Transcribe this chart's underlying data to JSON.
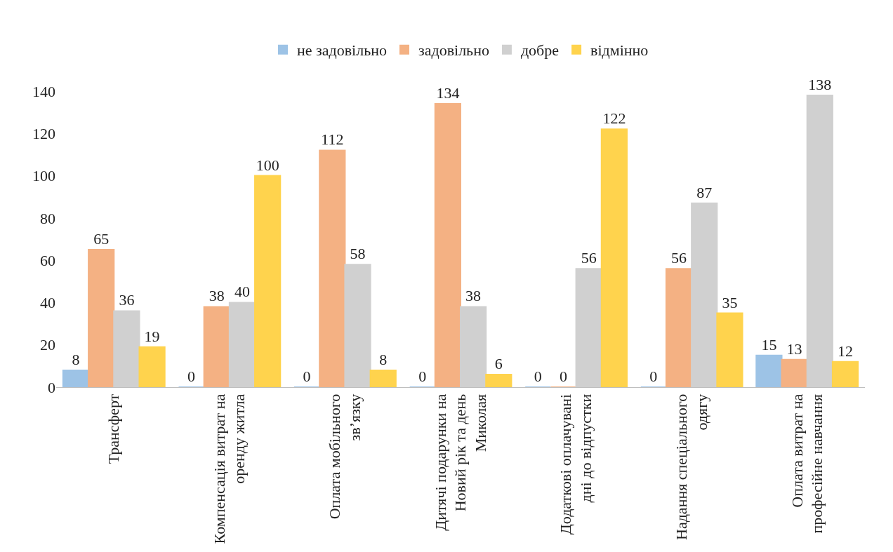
{
  "chart_data": {
    "type": "bar",
    "categories": [
      "Трансферт",
      "Компенсація витрат на оренду житла",
      "Оплата мобільного зв’язку",
      "Дитячі подарунки на Новий рік та день Миколая",
      "Додаткові оплачувані дні до відпустки",
      "Надання спеціального одягу",
      "Оплата витрат на професійне навчання"
    ],
    "series": [
      {
        "name": "не задовільно",
        "color": "#9dc3e6",
        "values": [
          8,
          0,
          0,
          0,
          0,
          0,
          15
        ]
      },
      {
        "name": "задовільно",
        "color": "#f4b183",
        "values": [
          65,
          38,
          112,
          134,
          0,
          56,
          13
        ]
      },
      {
        "name": "добре",
        "color": "#d0d0d0",
        "values": [
          36,
          40,
          58,
          38,
          56,
          87,
          138
        ]
      },
      {
        "name": "відмінно",
        "color": "#ffd34d",
        "values": [
          19,
          100,
          8,
          6,
          122,
          35,
          12
        ]
      }
    ],
    "ylim": [
      0,
      140
    ],
    "yticks": [
      0,
      20,
      40,
      60,
      80,
      100,
      120,
      140
    ],
    "data_labels": true,
    "legend": "top"
  }
}
